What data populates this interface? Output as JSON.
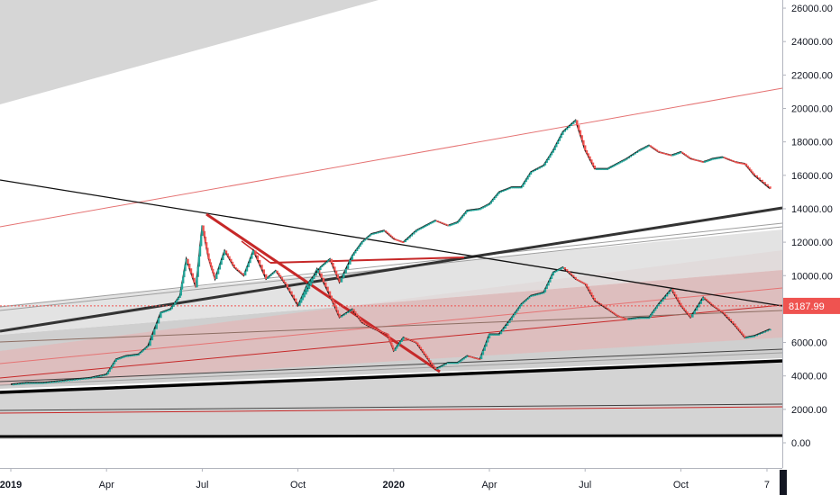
{
  "chart_data": {
    "type": "line",
    "instrument_hint": "candlestick price chart with drawn trendlines and channels",
    "y_axis": {
      "ticks": [
        "0.00",
        "2000.00",
        "4000.00",
        "6000.00",
        "8000.00",
        "10000.00",
        "12000.00",
        "14000.00",
        "16000.00",
        "18000.00",
        "20000.00",
        "22000.00",
        "24000.00",
        "26000.00"
      ],
      "ylim": [
        -900,
        26800
      ]
    },
    "x_axis": {
      "ticks": [
        {
          "label": "2019",
          "bold": true
        },
        {
          "label": "Apr",
          "bold": false
        },
        {
          "label": "Jul",
          "bold": false
        },
        {
          "label": "Oct",
          "bold": false
        },
        {
          "label": "2020",
          "bold": true
        },
        {
          "label": "Apr",
          "bold": false
        },
        {
          "label": "Jul",
          "bold": false
        },
        {
          "label": "Oct",
          "bold": false
        },
        {
          "label": "7",
          "bold": false
        }
      ]
    },
    "current_price": {
      "label": "8187.99",
      "value": 8187.99,
      "color": "#ef5350"
    },
    "grid": false,
    "colors": {
      "up": "#26a69a",
      "down": "#ef5350",
      "trendline_red": "#c62828",
      "trendline_black": "#000000",
      "channel_gray": "#9e9e9e",
      "channel_pink": "#e57373"
    },
    "series": [
      {
        "values_x_months": [
          0,
          0.5,
          1,
          1.5,
          2,
          2.5,
          3,
          3.3,
          3.6,
          4,
          4.3,
          4.7,
          5,
          5.3,
          5.5,
          5.8,
          6,
          6.2,
          6.4,
          6.7,
          7,
          7.3,
          7.6,
          8,
          8.3,
          8.6,
          9,
          9.3,
          9.6,
          10,
          10.3,
          10.7,
          11,
          11.4,
          11.8,
          12,
          12.3,
          12.7,
          13,
          13.3,
          13.7,
          14,
          14.3,
          14.7,
          15,
          15.3,
          15.7,
          16,
          16.3,
          16.7,
          17,
          17.3,
          17.7,
          18,
          18.3,
          18.7,
          19,
          19.3,
          19.7,
          20,
          20.3,
          20.7,
          21,
          21.3,
          21.7,
          22,
          22.3,
          22.7,
          23,
          23.3,
          23.8
        ],
        "values": [
          3500,
          3600,
          3600,
          3700,
          3800,
          3900,
          4100,
          5000,
          5200,
          5300,
          5800,
          7800,
          8000,
          8800,
          11000,
          9300,
          13000,
          11000,
          9800,
          11500,
          10500,
          10000,
          11500,
          9800,
          10300,
          9500,
          8200,
          9200,
          10400,
          8800,
          7500,
          8000,
          7200,
          6800,
          6500,
          5500,
          6300,
          6000,
          5200,
          4400,
          4800,
          4800,
          5200,
          5000,
          6500,
          6500,
          7500,
          8300,
          8800,
          9000,
          10200,
          10500,
          9800,
          9500,
          8500,
          8000,
          7600,
          7400,
          7500,
          7500,
          8300,
          9200,
          8200,
          7500,
          8700,
          8200,
          7800,
          7000,
          6300,
          6400,
          6800
        ]
      },
      {
        "values_x_months": [
          9,
          9.3,
          9.7,
          10,
          10.3,
          10.7,
          11,
          11.3,
          11.7,
          12,
          12.3,
          12.7,
          13,
          13.3,
          13.7,
          14,
          14.3,
          14.7,
          15,
          15.3,
          15.7,
          16,
          16.3,
          16.7,
          17,
          17.3,
          17.7,
          18,
          18.3,
          18.7,
          19,
          19.3,
          19.7,
          20,
          20.3,
          20.7,
          21,
          21.3,
          21.7,
          22,
          22.3,
          22.7,
          23,
          23.3,
          23.8
        ],
        "values": [
          8200,
          9500,
          10500,
          11000,
          9600,
          11200,
          12000,
          12500,
          12700,
          12200,
          12000,
          12700,
          13000,
          13300,
          13000,
          13200,
          13900,
          14000,
          14300,
          15000,
          15300,
          15300,
          16200,
          16600,
          17500,
          18600,
          19300,
          17500,
          16400,
          16400,
          16700,
          17000,
          17500,
          17800,
          17400,
          17200,
          17400,
          17000,
          16800,
          17000,
          17100,
          16800,
          16700,
          16000,
          15200
        ]
      }
    ]
  }
}
